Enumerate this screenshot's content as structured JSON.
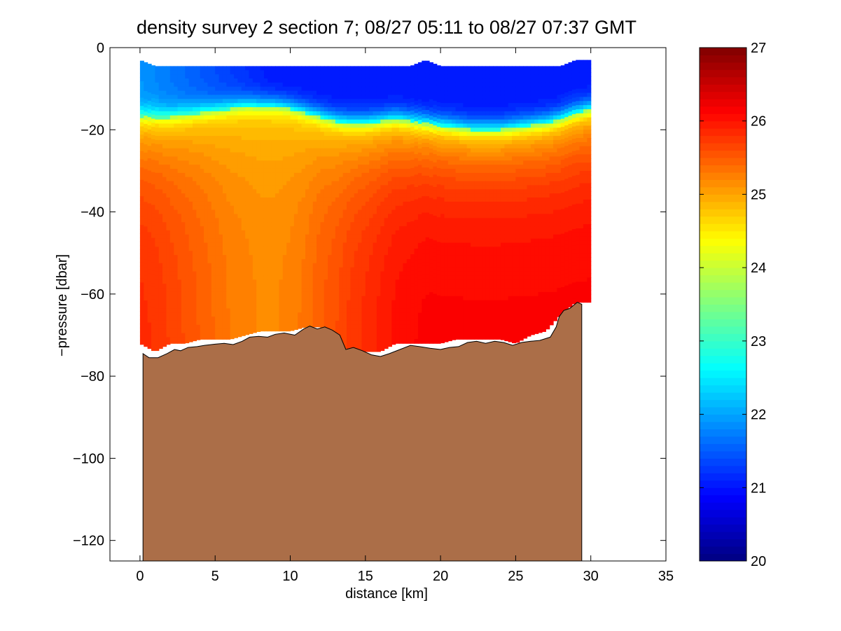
{
  "chart_data": {
    "type": "heatmap",
    "title": "density survey 2 section 7; 08/27 05:11 to 08/27 07:37 GMT",
    "xlabel": "distance [km]",
    "ylabel": "−pressure [dbar]",
    "xlim": [
      -2,
      35
    ],
    "ylim": [
      -125,
      0
    ],
    "xticks": [
      0,
      5,
      10,
      15,
      20,
      25,
      30,
      35
    ],
    "xtick_labels": [
      "0",
      "5",
      "10",
      "15",
      "20",
      "25",
      "30",
      "35"
    ],
    "yticks": [
      0,
      -20,
      -40,
      -60,
      -80,
      -100,
      -120
    ],
    "ytick_labels": [
      "0",
      "−20",
      "−40",
      "−60",
      "−80",
      "−100",
      "−120"
    ],
    "colorbar": {
      "range": [
        20,
        27
      ],
      "ticks": [
        20,
        21,
        22,
        23,
        24,
        25,
        26,
        27
      ],
      "tick_labels": [
        "20",
        "21",
        "22",
        "23",
        "24",
        "25",
        "26",
        "27"
      ],
      "colormap": "jet",
      "levels": 70
    },
    "grid": false,
    "x_stations": [
      0,
      1,
      2,
      3,
      4,
      5,
      6,
      7,
      8,
      9,
      10,
      11,
      12,
      13,
      14,
      15,
      16,
      17,
      18,
      19,
      20,
      21,
      22,
      23,
      24,
      25,
      26,
      27,
      28,
      29,
      30
    ],
    "surface_depth": [
      -3,
      -4.5,
      -4.5,
      -4.5,
      -4.5,
      -4.5,
      -4.5,
      -4.5,
      -4.5,
      -4.5,
      -4.5,
      -4.5,
      -4.5,
      -4.5,
      -4.5,
      -4.5,
      -4.5,
      -4.5,
      -4.5,
      -3,
      -4.5,
      -4.5,
      -4.5,
      -4.5,
      -4.5,
      -4.5,
      -4.5,
      -4.5,
      -4.5,
      -3,
      -3
    ],
    "data_bottom_depth": [
      -72,
      -74,
      -72,
      -72,
      -71,
      -71,
      -71,
      -70,
      -69,
      -69,
      -69,
      -68,
      -68,
      -72,
      -74,
      -74,
      -74,
      -72,
      -72,
      -72,
      -72,
      -71,
      -71,
      -71,
      -71,
      -72,
      -70,
      -69,
      -65,
      -62,
      -62
    ],
    "pycnocline_depth": [
      -17,
      -17,
      -17,
      -16.5,
      -16,
      -15.5,
      -15,
      -14.5,
      -14.5,
      -14.5,
      -15,
      -16,
      -17,
      -18,
      -18.5,
      -18.5,
      -18,
      -17.5,
      -18,
      -18.5,
      -19,
      -19.5,
      -20,
      -20,
      -20,
      -19.5,
      -19,
      -18.5,
      -17.5,
      -16,
      -15
    ],
    "surface_density": [
      21.9,
      21.8,
      21.7,
      21.6,
      21.5,
      21.4,
      21.3,
      21.2,
      21.1,
      21.0,
      21.0,
      21.0,
      21.0,
      21.0,
      21.0,
      21.0,
      21.0,
      21.0,
      21.0,
      21.0,
      21.0,
      21.0,
      21.0,
      21.0,
      21.0,
      21.0,
      21.0,
      21.0,
      21.0,
      21.0,
      21.0
    ],
    "deep_density": [
      25.85,
      25.8,
      25.7,
      25.6,
      25.5,
      25.4,
      25.3,
      25.25,
      25.2,
      25.2,
      25.25,
      25.35,
      25.5,
      25.6,
      25.75,
      25.85,
      25.95,
      26.05,
      26.1,
      26.15,
      26.15,
      26.15,
      26.15,
      26.15,
      26.15,
      26.15,
      26.15,
      26.15,
      26.15,
      26.15,
      26.15
    ],
    "seafloor": {
      "color": "#ab6e48",
      "x": [
        0.2,
        0.6,
        1.2,
        1.8,
        2.3,
        2.7,
        3.2,
        3.8,
        4.3,
        5.0,
        5.6,
        6.2,
        6.8,
        7.3,
        7.9,
        8.5,
        9.0,
        9.6,
        10.3,
        10.9,
        11.3,
        11.8,
        12.3,
        12.8,
        13.3,
        13.7,
        14.2,
        14.8,
        15.4,
        16.0,
        16.6,
        17.3,
        18.0,
        18.6,
        19.3,
        20.0,
        20.6,
        21.2,
        21.8,
        22.4,
        23.0,
        23.6,
        24.2,
        24.8,
        25.4,
        26.0,
        26.6,
        27.3,
        27.7,
        27.9,
        28.2,
        28.6,
        29.1,
        29.4
      ],
      "y": [
        -74.5,
        -75.5,
        -75.5,
        -74.5,
        -73.5,
        -73.8,
        -73.0,
        -72.8,
        -72.5,
        -72.2,
        -72.0,
        -72.3,
        -71.5,
        -70.5,
        -70.3,
        -70.5,
        -69.8,
        -69.5,
        -70.0,
        -68.5,
        -67.8,
        -68.5,
        -68.0,
        -68.8,
        -70.0,
        -73.5,
        -73.0,
        -73.8,
        -74.8,
        -75.2,
        -74.5,
        -73.5,
        -72.5,
        -72.8,
        -73.2,
        -73.5,
        -73.0,
        -72.8,
        -71.8,
        -71.5,
        -72.0,
        -71.5,
        -71.8,
        -72.5,
        -71.8,
        -71.5,
        -71.3,
        -70.5,
        -68.0,
        -65.5,
        -64.0,
        -63.5,
        -62.0,
        -62.5
      ]
    }
  }
}
